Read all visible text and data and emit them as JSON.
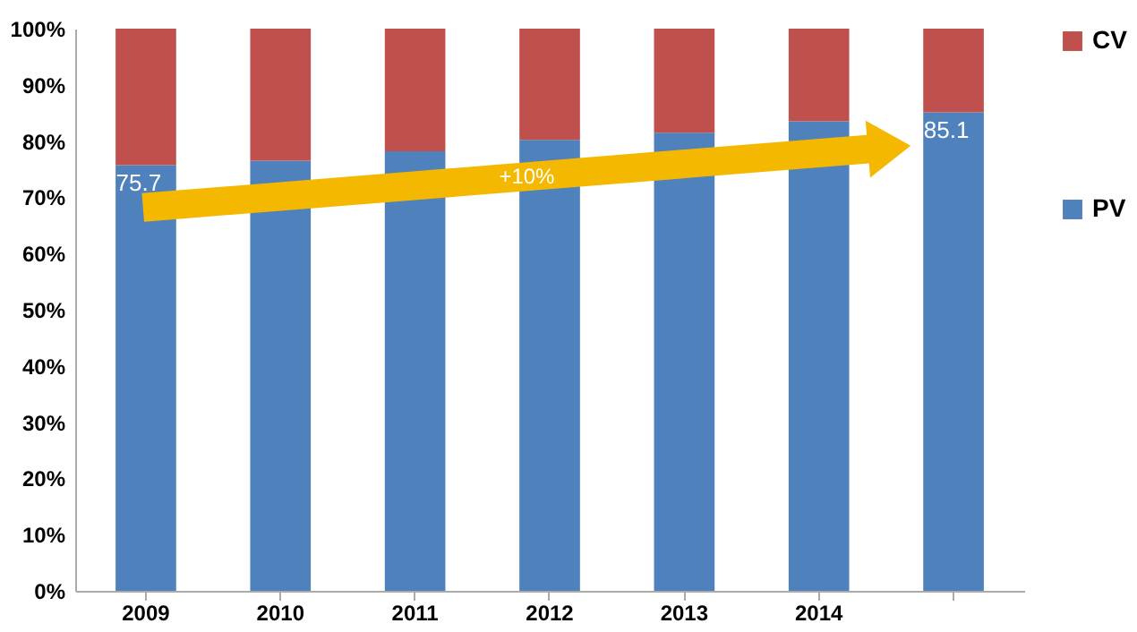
{
  "chart_data": {
    "type": "bar",
    "stacked": true,
    "categories": [
      "2009",
      "2010",
      "2011",
      "2012",
      "2013",
      "2014",
      null
    ],
    "series": [
      {
        "name": "PV",
        "color": "#4f81bd",
        "values": [
          75.7,
          76.5,
          78.2,
          80.2,
          81.5,
          83.5,
          85.1
        ],
        "value_labels": [
          "75.7",
          null,
          null,
          null,
          null,
          null,
          "85.1"
        ]
      },
      {
        "name": "CV",
        "color": "#c0504d",
        "values": [
          24.3,
          23.5,
          21.8,
          19.8,
          18.5,
          16.5,
          14.9
        ]
      }
    ],
    "ylim": [
      0,
      100
    ],
    "yticks": [
      {
        "value": 0,
        "label": "0%"
      },
      {
        "value": 10,
        "label": "10%"
      },
      {
        "value": 20,
        "label": "20%"
      },
      {
        "value": 30,
        "label": "30%"
      },
      {
        "value": 40,
        "label": "40%"
      },
      {
        "value": 50,
        "label": "50%"
      },
      {
        "value": 60,
        "label": "60%"
      },
      {
        "value": 70,
        "label": "70%"
      },
      {
        "value": 80,
        "label": "80%"
      },
      {
        "value": 90,
        "label": "90%"
      },
      {
        "value": 100,
        "label": "100%"
      }
    ],
    "legend": "right",
    "grid": false,
    "annotations": [
      "+10%"
    ]
  }
}
